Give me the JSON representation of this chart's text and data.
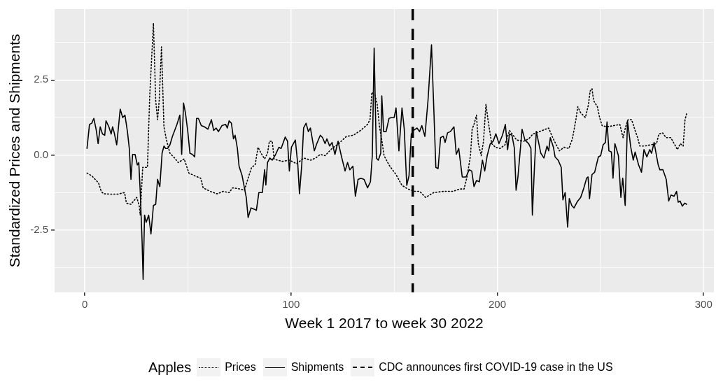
{
  "chart_data": {
    "type": "line",
    "xlabel": "Week 1 2017 to week 30 2022",
    "ylabel": "Standardized Prices and Shipments",
    "legend_title": "Apples",
    "legend": "bottom",
    "grid": true,
    "marker": "none",
    "xlim": [
      -14.6,
      305
    ],
    "ylim": [
      -4.57,
      4.86
    ],
    "xticks": [
      0,
      {
        "value": 50,
        "label": null
      },
      100,
      {
        "value": 150,
        "label": null
      },
      200,
      {
        "value": 250,
        "label": null
      },
      300
    ],
    "yticks": [
      {
        "value": -3.75,
        "label": null
      },
      {
        "value": -2.5,
        "label": "-2.5"
      },
      {
        "value": -1.25,
        "label": null
      },
      {
        "value": 0,
        "label": "0.0"
      },
      {
        "value": 1.25,
        "label": null
      },
      {
        "value": 2.5,
        "label": "2.5"
      },
      {
        "value": 3.75,
        "label": null
      }
    ],
    "ref_lines": [
      {
        "axis": "x",
        "value": 159,
        "label": "CDC announces first COVID-19 case in the US",
        "color": "#000000",
        "line_style": "dashed"
      }
    ],
    "series": [
      {
        "name": "Prices",
        "color": "#000000",
        "line_style": "dotted",
        "x": [
          1.1,
          3.4,
          6.7,
          8.0,
          9.2,
          12.6,
          16.1,
          19.3,
          20.2,
          22.4,
          25.2,
          26.4,
          26.9,
          28.1,
          30.4,
          31.5,
          33.3,
          34.4,
          35.3,
          36.1,
          37.2,
          38.4,
          39.5,
          41.3,
          43.6,
          45.3,
          48.2,
          50.5,
          53.3,
          56.2,
          57.4,
          60.8,
          64.2,
          67.1,
          70.0,
          71.7,
          75.2,
          77.4,
          79.2,
          80.9,
          82.6,
          84.0,
          85.5,
          87.2,
          88.6,
          89.5,
          90.9,
          91.8,
          93.5,
          95.8,
          99.2,
          102.7,
          106.2,
          109.6,
          111.9,
          114.2,
          116.5,
          119.9,
          123.1,
          126.8,
          130.2,
          133.7,
          137.1,
          138.3,
          139.2,
          140.6,
          141.7,
          142.9,
          144.0,
          145.1,
          147.5,
          150.9,
          153.8,
          156.6,
          160.0,
          162.4,
          165.2,
          169.2,
          173.8,
          178.4,
          181.9,
          183.9,
          185.3,
          187.0,
          187.8,
          188.7,
          189.9,
          190.8,
          192.2,
          193.3,
          194.5,
          195.8,
          197.3,
          199.1,
          201.4,
          203.7,
          205.9,
          209.4,
          212.8,
          215.2,
          217.3,
          221.9,
          224.9,
          226.6,
          228.3,
          230.1,
          232.4,
          234.7,
          236.4,
          238.1,
          239.0,
          240.4,
          242.7,
          244.1,
          245.0,
          245.9,
          246.7,
          248.5,
          249.6,
          250.8,
          253.1,
          256.5,
          259.4,
          260.5,
          261.0,
          262.2,
          263.4,
          265.1,
          266.8,
          268.0,
          269.1,
          271.4,
          274.3,
          277.2,
          278.3,
          280.1,
          281.8,
          284.1,
          286.4,
          287.3,
          288.7,
          290.1,
          291.0,
          291.9
        ],
        "values": [
          -0.6,
          -0.69,
          -0.93,
          -1.21,
          -1.29,
          -1.3,
          -1.3,
          -1.25,
          -1.6,
          -1.64,
          -1.41,
          -1.68,
          -2.0,
          -0.41,
          -0.41,
          1.97,
          4.39,
          1.81,
          1.18,
          1.81,
          3.6,
          0.94,
          0.54,
          0.06,
          -0.1,
          -0.25,
          -0.13,
          -0.6,
          -0.69,
          -0.77,
          -1.09,
          -1.21,
          -1.29,
          -1.21,
          -1.25,
          -1.09,
          -1.13,
          -1.17,
          -0.77,
          -0.41,
          -0.33,
          0.26,
          0.06,
          -0.13,
          0.06,
          0.46,
          0.46,
          -0.13,
          -0.17,
          -0.21,
          -0.17,
          -0.29,
          -0.1,
          -0.17,
          -0.1,
          0.02,
          -0.02,
          0.22,
          0.38,
          0.62,
          0.66,
          0.82,
          1.02,
          1.18,
          2.09,
          2.01,
          1.73,
          0.94,
          0.5,
          -0.02,
          -0.33,
          -0.65,
          -1.01,
          -1.13,
          -1.21,
          -1.21,
          -1.41,
          -1.25,
          -1.21,
          -1.21,
          -1.13,
          -1.13,
          -0.73,
          -0.02,
          0.86,
          1.02,
          1.33,
          0.38,
          -0.02,
          0.46,
          1.69,
          1.02,
          0.38,
          0.26,
          0.22,
          0.34,
          0.82,
          0.5,
          0.46,
          0.54,
          0.7,
          0.82,
          0.9,
          0.62,
          0.38,
          0.14,
          0.26,
          0.22,
          0.54,
          1.18,
          1.61,
          1.41,
          1.25,
          1.65,
          2.13,
          2.21,
          1.81,
          1.61,
          1.25,
          0.98,
          0.94,
          0.98,
          1.02,
          0.7,
          0.58,
          0.94,
          1.18,
          1.18,
          0.82,
          0.58,
          0.3,
          0.3,
          0.34,
          0.38,
          0.7,
          0.74,
          0.58,
          0.58,
          0.3,
          0.18,
          0.38,
          0.3,
          1.18,
          1.41
        ]
      },
      {
        "name": "Shipments",
        "color": "#000000",
        "line_style": "solid",
        "x": [
          1.1,
          2.3,
          3.4,
          4.4,
          5.5,
          6.5,
          7.5,
          8.6,
          9.7,
          10.3,
          11.7,
          12.8,
          13.5,
          14.3,
          15.5,
          17.2,
          18.4,
          19.5,
          20.7,
          21.6,
          22.4,
          23.2,
          24.4,
          25.5,
          26.2,
          26.9,
          27.8,
          28.3,
          29.0,
          29.8,
          31.0,
          32.1,
          33.3,
          34.4,
          35.3,
          36.4,
          37.5,
          38.4,
          39.2,
          40.2,
          41.3,
          42.5,
          43.6,
          44.7,
          46.1,
          47.0,
          47.9,
          48.8,
          49.9,
          51.0,
          52.2,
          53.3,
          54.2,
          55.1,
          56.5,
          58.0,
          59.7,
          61.4,
          62.5,
          63.7,
          64.8,
          66.5,
          68.3,
          69.1,
          70.0,
          71.1,
          72.1,
          72.9,
          74.0,
          74.8,
          76.3,
          77.4,
          78.3,
          79.2,
          80.6,
          82.1,
          83.2,
          84.4,
          86.1,
          87.2,
          87.8,
          88.6,
          89.7,
          90.9,
          92.4,
          94.1,
          95.2,
          97.2,
          98.3,
          99.2,
          100.2,
          102.1,
          103.3,
          104.1,
          105.2,
          106.1,
          107.3,
          108.4,
          109.4,
          111.3,
          112.5,
          114.2,
          115.3,
          116.5,
          117.4,
          118.7,
          119.9,
          121.3,
          122.8,
          124.5,
          126.2,
          127.4,
          128.5,
          130.0,
          131.2,
          132.5,
          133.9,
          135.4,
          137.1,
          138.5,
          139.4,
          140.3,
          141.4,
          142.3,
          143.5,
          144.0,
          144.9,
          146.1,
          147.5,
          148.6,
          150.0,
          150.9,
          152.3,
          153.8,
          154.9,
          156.1,
          157.2,
          158.3,
          159.4,
          161.1,
          162.3,
          163.4,
          164.9,
          166.4,
          168.1,
          169.2,
          170.2,
          171.3,
          172.5,
          173.8,
          174.7,
          175.9,
          177.2,
          179.0,
          180.1,
          181.3,
          183.0,
          184.8,
          186.4,
          187.6,
          188.7,
          189.9,
          191.3,
          192.8,
          193.9,
          195.1,
          196.6,
          198.0,
          199.3,
          200.8,
          202.5,
          203.9,
          205.0,
          205.9,
          207.1,
          208.3,
          209.1,
          210.0,
          212.0,
          213.4,
          215.2,
          216.3,
          217.0,
          218.0,
          218.9,
          219.9,
          221.1,
          222.6,
          224.1,
          224.9,
          225.7,
          227.2,
          228.0,
          229.5,
          231.0,
          231.8,
          232.9,
          234.1,
          234.9,
          236.1,
          237.2,
          238.7,
          240.4,
          241.8,
          243.3,
          244.0,
          244.7,
          245.9,
          247.2,
          249.0,
          250.1,
          251.3,
          252.4,
          253.2,
          254.1,
          255.3,
          256.1,
          257.0,
          258.7,
          259.9,
          260.8,
          262.0,
          263.1,
          264.7,
          265.9,
          266.8,
          268.5,
          269.9,
          271.1,
          272.5,
          273.9,
          274.8,
          276.0,
          278.0,
          278.8,
          280.3,
          281.9,
          283.1,
          284.2,
          285.7,
          286.9,
          287.7,
          288.6,
          289.7,
          290.9,
          291.8
        ],
        "values": [
          0.22,
          1.02,
          1.06,
          1.22,
          0.86,
          0.38,
          0.94,
          0.7,
          0.66,
          1.14,
          0.94,
          0.7,
          0.94,
          0.74,
          0.34,
          1.53,
          1.25,
          1.33,
          0.78,
          0.22,
          -0.81,
          0.02,
          0.02,
          -0.33,
          -0.25,
          -1.21,
          -2.87,
          -4.14,
          -2.0,
          -2.24,
          -2.0,
          -2.63,
          -1.68,
          -1.64,
          -0.81,
          -1.05,
          0.06,
          0.3,
          0.22,
          0.22,
          0.34,
          0.62,
          0.82,
          1.02,
          1.33,
          0.02,
          1.73,
          1.41,
          0.82,
          0.06,
          0.02,
          -0.06,
          1.22,
          1.22,
          0.98,
          0.94,
          0.86,
          1.18,
          0.82,
          0.9,
          0.78,
          0.98,
          1.02,
          0.9,
          1.14,
          1.06,
          0.54,
          0.66,
          0.22,
          -0.37,
          -0.69,
          -1.09,
          -1.41,
          -2.08,
          -1.76,
          -1.8,
          -1.84,
          -1.25,
          -1.25,
          -0.49,
          -1.0,
          -0.25,
          -0.1,
          -0.17,
          0.0,
          0.26,
          0.22,
          0.6,
          0.46,
          -0.53,
          0.26,
          0.5,
          -0.33,
          -1.29,
          -0.33,
          0.9,
          1.06,
          0.78,
          0.9,
          0.14,
          0.38,
          0.66,
          0.58,
          0.38,
          0.54,
          0.3,
          0.42,
          0.02,
          0.46,
          -0.06,
          -0.53,
          -0.25,
          -0.49,
          -0.37,
          -1.37,
          -0.81,
          -0.77,
          -0.81,
          -1.09,
          -0.89,
          -0.02,
          3.56,
          -0.1,
          -0.17,
          0.06,
          1.97,
          0.78,
          0.78,
          1.22,
          1.25,
          1.25,
          1.57,
          0.14,
          1.57,
          0.86,
          -1.01,
          -0.69,
          0.7,
          0.82,
          0.9,
          0.78,
          0.98,
          0.62,
          1.81,
          3.67,
          1.57,
          -0.41,
          -0.45,
          0.58,
          0.63,
          0.42,
          0.74,
          0.78,
          0.94,
          0.02,
          0.22,
          -0.73,
          -0.73,
          -0.49,
          -0.53,
          -1.05,
          -0.85,
          -0.89,
          -0.17,
          -0.53,
          -0.02,
          0.38,
          0.46,
          0.71,
          0.38,
          0.66,
          1.02,
          0.18,
          0.7,
          0.66,
          0.22,
          -1.17,
          -0.73,
          0.86,
          0.5,
          0.38,
          0.22,
          -2.0,
          -0.41,
          0.79,
          0.46,
          0.06,
          -0.1,
          0.3,
          0.14,
          0.58,
          0.26,
          -0.06,
          -0.17,
          -0.41,
          -1.49,
          -1.25,
          -2.4,
          -1.45,
          -1.68,
          -1.76,
          -1.56,
          -1.41,
          -1.13,
          -0.77,
          -0.73,
          -1.45,
          -0.65,
          -0.57,
          -0.06,
          -0.02,
          0.34,
          0.42,
          1.1,
          0.14,
          0.1,
          -0.77,
          0.38,
          -0.02,
          -1.41,
          -0.77,
          -1.68,
          1.14,
          0.26,
          -0.17,
          0.1,
          -0.33,
          -0.57,
          0.18,
          -0.06,
          0.18,
          0.06,
          0.42,
          -0.33,
          -0.49,
          -0.49,
          -0.81,
          -1.53,
          -1.33,
          -1.37,
          -1.21,
          -1.57,
          -1.53,
          -1.7,
          -1.6,
          -1.64
        ]
      }
    ]
  }
}
